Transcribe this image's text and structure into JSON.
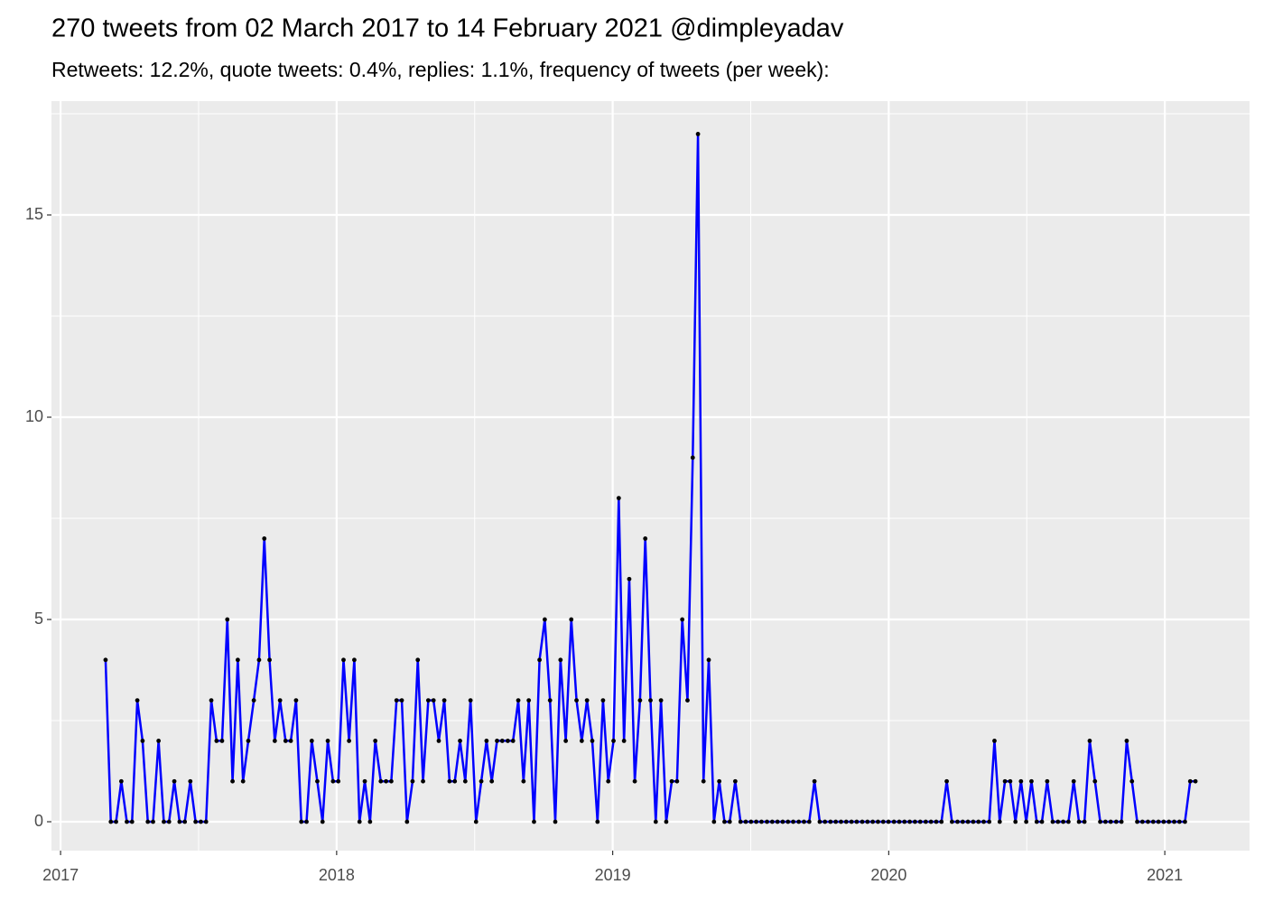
{
  "chart_data": {
    "type": "line",
    "title": "270 tweets from 02 March 2017 to 14 February 2021 @dimpleyadav",
    "subtitle": "Retweets: 12.2%, quote tweets: 0.4%, replies: 1.1%, frequency of tweets (per week):",
    "x": [
      2017.163,
      2017.182,
      2017.201,
      2017.22,
      2017.24,
      2017.259,
      2017.278,
      2017.297,
      2017.316,
      2017.335,
      2017.355,
      2017.374,
      2017.393,
      2017.412,
      2017.431,
      2017.45,
      2017.47,
      2017.489,
      2017.508,
      2017.527,
      2017.546,
      2017.565,
      2017.585,
      2017.604,
      2017.623,
      2017.642,
      2017.661,
      2017.68,
      2017.7,
      2017.719,
      2017.738,
      2017.757,
      2017.776,
      2017.795,
      2017.815,
      2017.834,
      2017.853,
      2017.872,
      2017.891,
      2017.91,
      2017.93,
      2017.949,
      2017.968,
      2017.987,
      2018.006,
      2018.025,
      2018.045,
      2018.064,
      2018.083,
      2018.102,
      2018.121,
      2018.14,
      2018.16,
      2018.179,
      2018.198,
      2018.217,
      2018.236,
      2018.255,
      2018.275,
      2018.294,
      2018.313,
      2018.332,
      2018.351,
      2018.37,
      2018.39,
      2018.409,
      2018.428,
      2018.447,
      2018.466,
      2018.485,
      2018.505,
      2018.524,
      2018.543,
      2018.562,
      2018.581,
      2018.6,
      2018.62,
      2018.639,
      2018.658,
      2018.677,
      2018.696,
      2018.715,
      2018.735,
      2018.754,
      2018.773,
      2018.792,
      2018.811,
      2018.83,
      2018.85,
      2018.869,
      2018.888,
      2018.907,
      2018.926,
      2018.945,
      2018.965,
      2018.984,
      2019.003,
      2019.022,
      2019.041,
      2019.06,
      2019.08,
      2019.099,
      2019.118,
      2019.137,
      2019.156,
      2019.175,
      2019.194,
      2019.214,
      2019.233,
      2019.252,
      2019.271,
      2019.29,
      2019.309,
      2019.329,
      2019.348,
      2019.367,
      2019.386,
      2019.405,
      2019.424,
      2019.444,
      2019.463,
      2019.482,
      2019.501,
      2019.52,
      2019.539,
      2019.559,
      2019.578,
      2019.597,
      2019.616,
      2019.635,
      2019.654,
      2019.674,
      2019.693,
      2019.712,
      2019.731,
      2019.75,
      2019.769,
      2019.789,
      2019.808,
      2019.827,
      2019.846,
      2019.865,
      2019.884,
      2019.904,
      2019.923,
      2019.942,
      2019.961,
      2019.98,
      2019.999,
      2020.019,
      2020.038,
      2020.057,
      2020.076,
      2020.095,
      2020.114,
      2020.134,
      2020.153,
      2020.172,
      2020.191,
      2020.21,
      2020.229,
      2020.249,
      2020.268,
      2020.287,
      2020.306,
      2020.325,
      2020.344,
      2020.364,
      2020.383,
      2020.402,
      2020.421,
      2020.44,
      2020.459,
      2020.479,
      2020.498,
      2020.517,
      2020.536,
      2020.555,
      2020.574,
      2020.594,
      2020.613,
      2020.632,
      2020.651,
      2020.67,
      2020.689,
      2020.709,
      2020.728,
      2020.747,
      2020.766,
      2020.785,
      2020.804,
      2020.824,
      2020.843,
      2020.862,
      2020.881,
      2020.9,
      2020.919,
      2020.939,
      2020.958,
      2020.977,
      2020.996,
      2021.015,
      2021.034,
      2021.053,
      2021.073,
      2021.092,
      2021.111
    ],
    "series": [
      {
        "color": "#0000ff",
        "marker_color": "#000000",
        "values": [
          4,
          0,
          0,
          1,
          0,
          0,
          3,
          2,
          0,
          0,
          2,
          0,
          0,
          1,
          0,
          0,
          1,
          0,
          0,
          0,
          3,
          2,
          2,
          5,
          1,
          4,
          1,
          2,
          3,
          4,
          7,
          4,
          2,
          3,
          2,
          2,
          3,
          0,
          0,
          2,
          1,
          0,
          2,
          1,
          1,
          4,
          2,
          4,
          0,
          1,
          0,
          2,
          1,
          1,
          1,
          3,
          3,
          0,
          1,
          4,
          1,
          3,
          3,
          2,
          3,
          1,
          1,
          2,
          1,
          3,
          0,
          1,
          2,
          1,
          2,
          2,
          2,
          2,
          3,
          1,
          3,
          0,
          4,
          5,
          3,
          0,
          4,
          2,
          5,
          3,
          2,
          3,
          2,
          0,
          3,
          1,
          2,
          8,
          2,
          6,
          1,
          3,
          7,
          3,
          0,
          3,
          0,
          1,
          1,
          5,
          3,
          9,
          17,
          1,
          4,
          0,
          1,
          0,
          0,
          1,
          0,
          0,
          0,
          0,
          0,
          0,
          0,
          0,
          0,
          0,
          0,
          0,
          0,
          0,
          1,
          0,
          0,
          0,
          0,
          0,
          0,
          0,
          0,
          0,
          0,
          0,
          0,
          0,
          0,
          0,
          0,
          0,
          0,
          0,
          0,
          0,
          0,
          0,
          0,
          1,
          0,
          0,
          0,
          0,
          0,
          0,
          0,
          0,
          2,
          0,
          1,
          1,
          0,
          1,
          0,
          1,
          0,
          0,
          1,
          0,
          0,
          0,
          0,
          1,
          0,
          0,
          2,
          1,
          0,
          0,
          0,
          0,
          0,
          2,
          1,
          0,
          0,
          0,
          0,
          0,
          0,
          0,
          0,
          0,
          0,
          1,
          1
        ]
      }
    ],
    "xlim": [
      2016.967,
      2021.307
    ],
    "xticks": [
      2017,
      2018,
      2019,
      2020,
      2021
    ],
    "ylim": [
      -0.714,
      17.813
    ],
    "yticks": [
      0,
      5,
      10,
      15
    ],
    "grid": true
  }
}
